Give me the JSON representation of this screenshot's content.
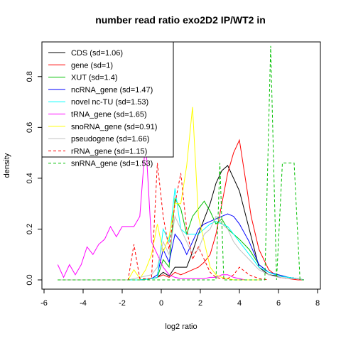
{
  "chart_data": {
    "type": "line",
    "title": "number read ratio exo2D2 IP/WT2 in",
    "xlabel": "log2 ratio",
    "ylabel": "density",
    "xlim": [
      -6,
      8
    ],
    "ylim": [
      0,
      0.9
    ],
    "xticks": [
      "-6",
      "-4",
      "-2",
      "0",
      "2",
      "4",
      "6",
      "8"
    ],
    "yticks": [
      "0.0",
      "0.2",
      "0.4",
      "0.6",
      "0.8"
    ],
    "legend_position": "top-left",
    "series": [
      {
        "name": "CDS (sd=1.06)",
        "color": "#000000",
        "dash": false,
        "x": [
          -5.3,
          -4.7,
          -4.1,
          -3.5,
          -2.9,
          -2.3,
          -1.7,
          -1.1,
          -0.5,
          -0.2,
          0.1,
          0.4,
          0.7,
          1.0,
          1.3,
          1.6,
          1.9,
          2.2,
          2.5,
          2.8,
          3.1,
          3.4,
          3.7,
          4.0,
          4.5,
          5.0,
          5.5,
          6.0,
          6.5,
          7.0,
          7.3
        ],
        "y": [
          0,
          0,
          0,
          0,
          0,
          0,
          0,
          0,
          0.005,
          0.01,
          0.03,
          0.015,
          0.05,
          0.05,
          0.05,
          0.11,
          0.18,
          0.24,
          0.3,
          0.38,
          0.43,
          0.45,
          0.4,
          0.35,
          0.2,
          0.05,
          0.02,
          0.015,
          0.01,
          0.005,
          0
        ]
      },
      {
        "name": "gene (sd=1)",
        "color": "#ff0000",
        "dash": false,
        "x": [
          -5.3,
          -4.7,
          -4.1,
          -3.5,
          -2.9,
          -2.3,
          -1.7,
          -1.1,
          -0.5,
          -0.2,
          0.1,
          0.4,
          0.7,
          1.0,
          1.3,
          1.6,
          1.9,
          2.2,
          2.5,
          2.8,
          3.1,
          3.4,
          3.7,
          4.0,
          4.3,
          4.6,
          5.0,
          5.5,
          6.0,
          6.5,
          7.0,
          7.3
        ],
        "y": [
          0,
          0,
          0,
          0,
          0,
          0,
          0,
          0,
          0.005,
          0.01,
          0.02,
          0.01,
          0.03,
          0.02,
          0.03,
          0.04,
          0.05,
          0.07,
          0.1,
          0.18,
          0.3,
          0.42,
          0.5,
          0.55,
          0.4,
          0.25,
          0.12,
          0.04,
          0.01,
          0.005,
          0,
          0
        ]
      },
      {
        "name": "XUT (sd=1.4)",
        "color": "#00c000",
        "dash": false,
        "x": [
          -5.3,
          -4.7,
          -4.1,
          -3.5,
          -2.9,
          -2.3,
          -1.7,
          -1.1,
          -0.5,
          -0.2,
          0.1,
          0.4,
          0.7,
          1.0,
          1.3,
          1.6,
          1.9,
          2.2,
          2.5,
          2.8,
          3.1,
          3.4,
          3.7,
          4.0,
          4.5,
          5.0,
          5.5,
          6.0,
          6.5,
          7.0,
          7.3
        ],
        "y": [
          0,
          0,
          0,
          0,
          0,
          0,
          0,
          0,
          0.005,
          0.01,
          0.08,
          0.05,
          0.32,
          0.28,
          0.18,
          0.25,
          0.28,
          0.31,
          0.27,
          0.22,
          0.24,
          0.2,
          0.18,
          0.16,
          0.12,
          0.06,
          0.03,
          0.02,
          0.01,
          0.005,
          0
        ]
      },
      {
        "name": "ncRNA_gene (sd=1.47)",
        "color": "#0000ff",
        "dash": false,
        "x": [
          -5.3,
          -4.7,
          -4.1,
          -3.5,
          -2.9,
          -2.3,
          -1.7,
          -1.1,
          -0.5,
          -0.2,
          0.1,
          0.4,
          0.7,
          1.0,
          1.3,
          1.6,
          1.9,
          2.2,
          2.5,
          2.8,
          3.1,
          3.4,
          3.7,
          4.0,
          4.5,
          5.0,
          5.5,
          6.0,
          6.5,
          7.0,
          7.3
        ],
        "y": [
          0,
          0,
          0,
          0,
          0,
          0,
          0,
          0,
          0.005,
          0.02,
          0.12,
          0.07,
          0.18,
          0.15,
          0.1,
          0.15,
          0.2,
          0.22,
          0.23,
          0.24,
          0.25,
          0.26,
          0.25,
          0.22,
          0.15,
          0.06,
          0.03,
          0.02,
          0.01,
          0.005,
          0
        ]
      },
      {
        "name": "novel nc-TU (sd=1.53)",
        "color": "#00ffff",
        "dash": false,
        "x": [
          -5.3,
          -4.7,
          -4.1,
          -3.5,
          -2.9,
          -2.3,
          -1.7,
          -1.1,
          -0.5,
          -0.2,
          0.1,
          0.4,
          0.7,
          1.0,
          1.3,
          1.6,
          1.9,
          2.2,
          2.5,
          2.8,
          3.1,
          3.4,
          3.7,
          4.0,
          4.5,
          5.0,
          5.5,
          6.0,
          6.5,
          7.0,
          7.3
        ],
        "y": [
          0,
          0,
          0,
          0,
          0,
          0,
          0,
          0,
          0.005,
          0.01,
          0.2,
          0.15,
          0.36,
          0.2,
          0.18,
          0.18,
          0.18,
          0.2,
          0.22,
          0.23,
          0.22,
          0.21,
          0.18,
          0.15,
          0.1,
          0.05,
          0.03,
          0.015,
          0.01,
          0.005,
          0
        ]
      },
      {
        "name": "tRNA_gene (sd=1.65)",
        "color": "#ff00ff",
        "dash": false,
        "x": [
          -5.3,
          -5.0,
          -4.7,
          -4.4,
          -4.1,
          -3.8,
          -3.5,
          -3.2,
          -2.9,
          -2.6,
          -2.3,
          -2.0,
          -1.7,
          -1.4,
          -1.1,
          -0.8,
          -0.5,
          -0.2,
          0.1,
          0.4,
          0.7,
          1.0,
          1.3,
          1.6,
          1.9,
          2.2,
          2.5,
          2.8,
          3.1,
          3.4,
          3.7,
          4.0,
          4.3
        ],
        "y": [
          0.06,
          0.01,
          0.06,
          0.02,
          0.06,
          0.13,
          0.1,
          0.14,
          0.16,
          0.21,
          0.17,
          0.21,
          0.21,
          0.21,
          0.25,
          0.55,
          0.15,
          0.1,
          0.05,
          0.02,
          0.01,
          0.005,
          0.005,
          0.005,
          0.005,
          0.005,
          0.01,
          0.01,
          0.02,
          0.02,
          0.01,
          0.005,
          0
        ]
      },
      {
        "name": "snoRNA_gene (sd=0.91)",
        "color": "#ffff00",
        "dash": false,
        "x": [
          -5.3,
          -4.7,
          -4.1,
          -3.5,
          -2.9,
          -2.3,
          -1.7,
          -1.4,
          -1.1,
          -0.8,
          -0.5,
          -0.2,
          0.1,
          0.4,
          0.7,
          1.0,
          1.3,
          1.6,
          1.9,
          2.2,
          2.5,
          2.8,
          3.1,
          3.4,
          3.7,
          4.0,
          4.5,
          5.0
        ],
        "y": [
          0,
          0,
          0,
          0,
          0,
          0,
          0,
          0.04,
          0.005,
          0.04,
          0.1,
          0.22,
          0.11,
          0.17,
          0.3,
          0.3,
          0.45,
          0.68,
          0.25,
          0.15,
          0.05,
          0.02,
          0.01,
          0.005,
          0,
          0,
          0,
          0
        ]
      },
      {
        "name": "pseudogene (sd=1.66)",
        "color": "#c0c0c0",
        "dash": false,
        "x": [
          -5.3,
          -4.7,
          -4.1,
          -3.5,
          -2.9,
          -2.3,
          -1.7,
          -1.1,
          -0.5,
          -0.2,
          0.1,
          0.4,
          0.7,
          1.0,
          1.3,
          1.6,
          1.9,
          2.2,
          2.5,
          2.8,
          3.1,
          3.4,
          3.7,
          4.0,
          4.5,
          5.0,
          5.5,
          6.0,
          6.5,
          7.0,
          7.3
        ],
        "y": [
          0,
          0,
          0,
          0,
          0,
          0,
          0,
          0.01,
          0.02,
          0.05,
          0.15,
          0.1,
          0.25,
          0.2,
          0.15,
          0.1,
          0.12,
          0.18,
          0.2,
          0.25,
          0.22,
          0.2,
          0.15,
          0.12,
          0.08,
          0.04,
          0.02,
          0.01,
          0.005,
          0.005,
          0
        ]
      },
      {
        "name": "rRNA_gene (sd=1.15)",
        "color": "#ff0000",
        "dash": true,
        "x": [
          -5.3,
          -4.7,
          -4.1,
          -3.5,
          -2.9,
          -2.3,
          -1.7,
          -1.4,
          -1.1,
          -0.8,
          -0.5,
          -0.2,
          0.1,
          0.4,
          0.7,
          1.0,
          1.3,
          1.6,
          1.9,
          2.2,
          2.5,
          2.8,
          3.1,
          3.4,
          3.7,
          4.0,
          4.5,
          5.0,
          5.5
        ],
        "y": [
          0,
          0,
          0,
          0,
          0,
          0,
          0,
          0.14,
          0.005,
          0.005,
          0.005,
          0.46,
          0.25,
          0.12,
          0.3,
          0.42,
          0.2,
          0.08,
          0.13,
          0.08,
          0.03,
          0.01,
          0.005,
          0.005,
          0.02,
          0.05,
          0.02,
          0.005,
          0
        ]
      },
      {
        "name": "snRNA_gene (sd=1.53)",
        "color": "#00c000",
        "dash": true,
        "x": [
          -5.3,
          -4.7,
          -4.1,
          -3.5,
          -2.9,
          -2.3,
          -1.7,
          -1.1,
          -0.5,
          -0.2,
          0.1,
          0.4,
          0.7,
          1.0,
          1.3,
          1.6,
          1.9,
          2.2,
          2.5,
          2.8,
          3.0,
          3.2,
          3.5,
          4.0,
          4.5,
          5.0,
          5.3,
          5.6,
          5.9,
          6.2,
          6.5,
          6.8,
          7.1,
          7.3
        ],
        "y": [
          0,
          0,
          0,
          0,
          0,
          0,
          0,
          0,
          0,
          0,
          0,
          0,
          0,
          0,
          0,
          0,
          0,
          0,
          0,
          0,
          0.46,
          0,
          0,
          0,
          0,
          0,
          0,
          0.92,
          0,
          0.46,
          0.46,
          0.46,
          0,
          0
        ]
      }
    ]
  }
}
